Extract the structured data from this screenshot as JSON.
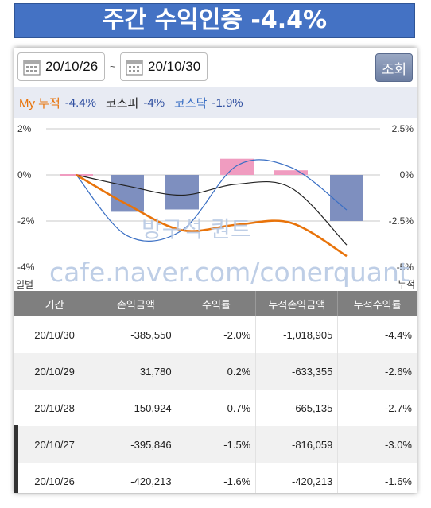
{
  "banner": {
    "title": "주간 수익인증 -4.4%"
  },
  "toolbar": {
    "start_date": "20/10/26",
    "separator": "~",
    "end_date": "20/10/30",
    "search_label": "조회"
  },
  "legend": {
    "my_label": "My 누적",
    "my_value": "-4.4%",
    "kospi_label": "코스피",
    "kospi_value": "-4%",
    "kosdaq_label": "코스닥",
    "kosdaq_value": "-1.9%",
    "colors": {
      "my": "#e8730a",
      "kospi": "#222222",
      "kosdaq": "#3a6fc4",
      "neg_bar": "#7e8fbf",
      "pos_bar": "#f09cc0"
    }
  },
  "watermark": {
    "line1": "방구석 퀀트",
    "line2": "cafe.naver.com/conerquant"
  },
  "chart_data": {
    "type": "bar+line",
    "categories": [
      "20/10/26",
      "20/10/27",
      "20/10/28",
      "20/10/29",
      "20/10/30"
    ],
    "left_axis": {
      "label": "일별",
      "ticks": [
        "2%",
        "0%",
        "-2%",
        "-4%"
      ],
      "range": [
        -4,
        2
      ]
    },
    "right_axis": {
      "label": "누적",
      "ticks": [
        "2.5%",
        "0%",
        "-2.5%",
        "-5%"
      ],
      "range": [
        -5,
        2.5
      ]
    },
    "daily_return_bars": [
      0.0,
      -1.6,
      -1.5,
      0.7,
      0.2,
      -2.0
    ],
    "cumulative_my": [
      0.0,
      -1.6,
      -3.0,
      -2.7,
      -2.6,
      -4.4
    ],
    "cumulative_kospi": [
      0.0,
      -0.6,
      -1.1,
      -0.5,
      -0.7,
      -3.8
    ],
    "cumulative_kosdaq": [
      0.0,
      -3.3,
      -3.0,
      0.5,
      0.4,
      -1.9
    ]
  },
  "table": {
    "headers": [
      "기간",
      "손익금액",
      "수익률",
      "누적손익금액",
      "누적수익률"
    ],
    "rows": [
      [
        "20/10/30",
        "-385,550",
        "-2.0%",
        "-1,018,905",
        "-4.4%"
      ],
      [
        "20/10/29",
        "31,780",
        "0.2%",
        "-633,355",
        "-2.6%"
      ],
      [
        "20/10/28",
        "150,924",
        "0.7%",
        "-665,135",
        "-2.7%"
      ],
      [
        "20/10/27",
        "-395,846",
        "-1.5%",
        "-816,059",
        "-3.0%"
      ],
      [
        "20/10/26",
        "-420,213",
        "-1.6%",
        "-420,213",
        "-1.6%"
      ]
    ]
  }
}
